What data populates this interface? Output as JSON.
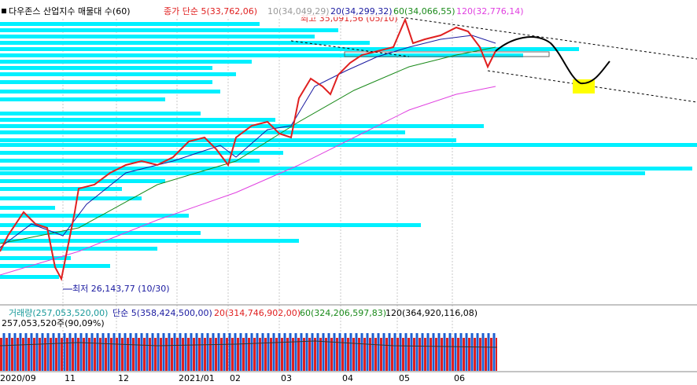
{
  "header": {
    "title": "다우존스 산업지수 매물대 수(60)",
    "indicators": [
      "종가 단순 5(33,762,06)",
      "10(34,049,29)",
      "20(34,299,32)",
      "60(34,066,55)",
      "120(32,776,14)"
    ]
  },
  "annotations": {
    "high": "최고 35,091,56 (05/10)",
    "low": "최저 26,143,77 (10/30)"
  },
  "volume_panel": {
    "indicators": [
      "거래량(257,053,520,00)",
      "단순 5(358,424,500,00)",
      "20(314,746,902,00)",
      "60(324,206,597,83)",
      "120(364,920,116,08)"
    ],
    "last": "257,053,520주(90,09%)"
  },
  "x_axis": {
    "labels": [
      "2020/09",
      "11",
      "12",
      "2021/01",
      "02",
      "03",
      "04",
      "05",
      "06"
    ]
  }
}
